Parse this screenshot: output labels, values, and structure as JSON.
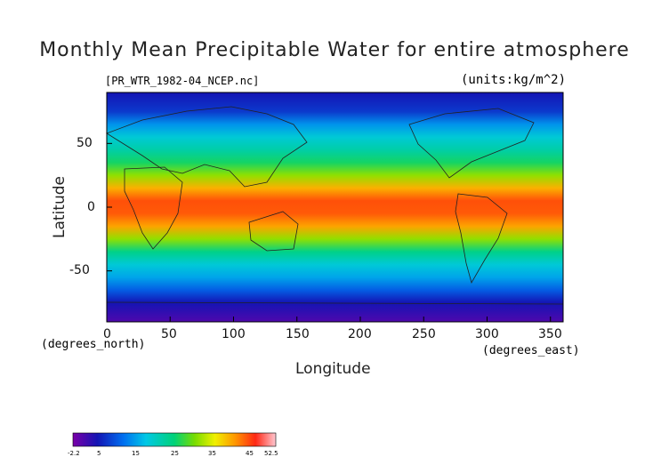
{
  "title": "Monthly Mean Precipitable Water for entire atmosphere",
  "file_label": "[PR_WTR_1982-04_NCEP.nc]",
  "units_label": "(units:kg/m^2)",
  "xlabel": "Longitude",
  "ylabel": "Latitude",
  "x_unit_label": "(degrees_east)",
  "y_unit_label": "(degrees_north)",
  "chart_data": {
    "type": "heatmap",
    "title": "Monthly Mean Precipitable Water for entire atmosphere",
    "xlabel": "Longitude",
    "ylabel": "Latitude",
    "xlim": [
      0,
      360
    ],
    "ylim": [
      -90,
      90
    ],
    "x_ticks": [
      "0",
      "50",
      "100",
      "150",
      "200",
      "250",
      "300",
      "350"
    ],
    "y_ticks": [
      "50",
      "0",
      "-50"
    ],
    "colorbar": {
      "ticks": [
        "-2.2",
        "5",
        "15",
        "25",
        "35",
        "45",
        "52.5"
      ],
      "min": -2.2,
      "max": 52.5
    },
    "latitude_profile": {
      "lat": [
        90,
        75,
        65,
        55,
        45,
        35,
        25,
        15,
        5,
        -5,
        -15,
        -25,
        -35,
        -45,
        -55,
        -65,
        -75,
        -90
      ],
      "value": [
        3,
        5,
        10,
        14,
        17,
        21,
        27,
        36,
        45,
        44,
        37,
        27,
        19,
        14,
        11,
        7,
        3,
        0
      ]
    }
  }
}
